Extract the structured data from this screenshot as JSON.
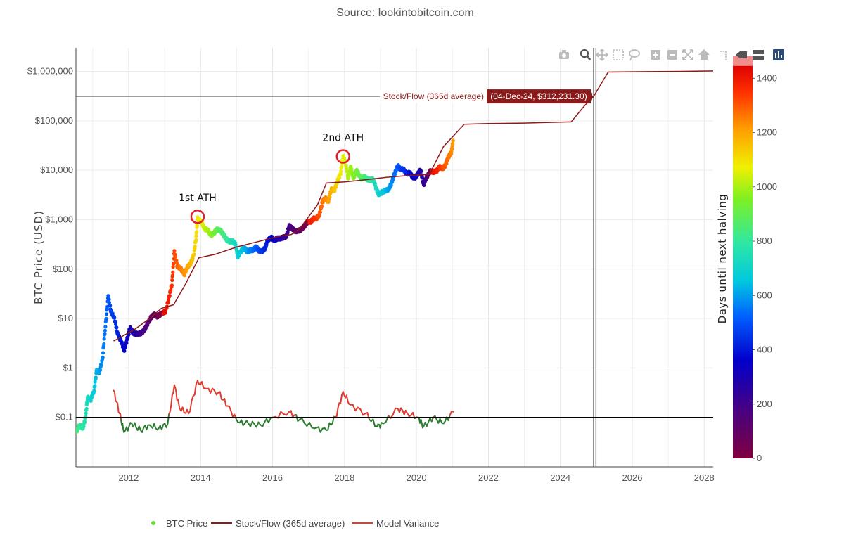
{
  "source": "Source: lookintobitcoin.com",
  "chart_data": {
    "type": "scatter",
    "xlabel": "",
    "ylabel": "BTC Price (USD)",
    "y_scale": "log",
    "xlim": [
      "2010-07-15",
      "2028-04-01"
    ],
    "ylim": [
      0.01,
      3000000
    ],
    "x_ticks": [
      "2012",
      "2014",
      "2016",
      "2018",
      "2020",
      "2022",
      "2024",
      "2026",
      "2028"
    ],
    "y_ticks": [
      {
        "v": 0.1,
        "label": "$0.1"
      },
      {
        "v": 1,
        "label": "$1"
      },
      {
        "v": 10,
        "label": "$10"
      },
      {
        "v": 100,
        "label": "$100"
      },
      {
        "v": 1000,
        "label": "$1,000"
      },
      {
        "v": 10000,
        "label": "$10,000"
      },
      {
        "v": 100000,
        "label": "$100,000"
      },
      {
        "v": 1000000,
        "label": "$1,000,000"
      }
    ],
    "colorbar": {
      "title": "Days until next halving",
      "min": 0,
      "max": 1450,
      "ticks": [
        0,
        200,
        400,
        600,
        800,
        1000,
        1200,
        1400
      ]
    },
    "series": [
      {
        "name": "BTC Price",
        "kind": "markers",
        "points": [
          [
            "2010-07-18",
            0.05,
            850
          ],
          [
            "2010-08-20",
            0.07,
            810
          ],
          [
            "2010-09-25",
            0.06,
            780
          ],
          [
            "2010-10-20",
            0.1,
            760
          ],
          [
            "2010-11-10",
            0.25,
            730
          ],
          [
            "2010-12-10",
            0.22,
            700
          ],
          [
            "2011-01-15",
            0.35,
            660
          ],
          [
            "2011-02-10",
            0.9,
            630
          ],
          [
            "2011-03-10",
            0.8,
            600
          ],
          [
            "2011-04-10",
            1.5,
            570
          ],
          [
            "2011-05-10",
            7,
            540
          ],
          [
            "2011-06-08",
            28,
            510
          ],
          [
            "2011-07-05",
            14,
            480
          ],
          [
            "2011-08-10",
            10,
            450
          ],
          [
            "2011-09-10",
            5,
            420
          ],
          [
            "2011-10-15",
            3.5,
            390
          ],
          [
            "2011-11-18",
            2.3,
            360
          ],
          [
            "2011-12-20",
            4,
            330
          ],
          [
            "2012-01-15",
            6.5,
            310
          ],
          [
            "2012-02-20",
            5,
            290
          ],
          [
            "2012-04-01",
            4.9,
            250
          ],
          [
            "2012-05-15",
            5.1,
            210
          ],
          [
            "2012-06-20",
            6.5,
            170
          ],
          [
            "2012-07-20",
            8.5,
            140
          ],
          [
            "2012-08-20",
            11,
            110
          ],
          [
            "2012-09-20",
            12,
            80
          ],
          [
            "2012-10-20",
            11,
            50
          ],
          [
            "2012-11-25",
            12.5,
            10
          ],
          [
            "2013-01-10",
            14,
            1420
          ],
          [
            "2013-02-15",
            27,
            1380
          ],
          [
            "2013-03-15",
            50,
            1350
          ],
          [
            "2013-04-09",
            220,
            1320
          ],
          [
            "2013-05-10",
            115,
            1290
          ],
          [
            "2013-06-15",
            100,
            1260
          ],
          [
            "2013-07-20",
            80,
            1230
          ],
          [
            "2013-08-20",
            110,
            1200
          ],
          [
            "2013-09-20",
            130,
            1170
          ],
          [
            "2013-10-20",
            180,
            1140
          ],
          [
            "2013-11-15",
            420,
            1110
          ],
          [
            "2013-12-01",
            1050,
            1090
          ],
          [
            "2014-01-10",
            900,
            1060
          ],
          [
            "2014-02-10",
            650,
            1030
          ],
          [
            "2014-03-15",
            620,
            1000
          ],
          [
            "2014-04-15",
            480,
            970
          ],
          [
            "2014-05-20",
            550,
            930
          ],
          [
            "2014-06-15",
            630,
            900
          ],
          [
            "2014-07-20",
            610,
            870
          ],
          [
            "2014-08-20",
            500,
            840
          ],
          [
            "2014-09-20",
            400,
            810
          ],
          [
            "2014-10-20",
            360,
            780
          ],
          [
            "2014-11-20",
            370,
            750
          ],
          [
            "2014-12-20",
            320,
            720
          ],
          [
            "2015-01-14",
            180,
            690
          ],
          [
            "2015-02-20",
            240,
            660
          ],
          [
            "2015-03-20",
            270,
            630
          ],
          [
            "2015-04-20",
            225,
            600
          ],
          [
            "2015-05-20",
            240,
            570
          ],
          [
            "2015-06-20",
            245,
            540
          ],
          [
            "2015-07-20",
            280,
            510
          ],
          [
            "2015-08-20",
            230,
            480
          ],
          [
            "2015-09-20",
            230,
            450
          ],
          [
            "2015-10-20",
            270,
            420
          ],
          [
            "2015-11-10",
            380,
            400
          ],
          [
            "2015-12-20",
            440,
            370
          ],
          [
            "2016-01-20",
            380,
            340
          ],
          [
            "2016-02-20",
            420,
            310
          ],
          [
            "2016-03-20",
            415,
            280
          ],
          [
            "2016-04-20",
            440,
            250
          ],
          [
            "2016-05-20",
            450,
            220
          ],
          [
            "2016-06-18",
            750,
            190
          ],
          [
            "2016-07-20",
            660,
            160
          ],
          [
            "2016-08-20",
            580,
            130
          ],
          [
            "2016-09-20",
            600,
            100
          ],
          [
            "2016-10-20",
            640,
            70
          ],
          [
            "2016-11-20",
            740,
            40
          ],
          [
            "2016-12-20",
            900,
            10
          ],
          [
            "2017-01-20",
            900,
            1400
          ],
          [
            "2017-02-20",
            1050,
            1370
          ],
          [
            "2017-03-20",
            1050,
            1340
          ],
          [
            "2017-04-20",
            1250,
            1310
          ],
          [
            "2017-05-25",
            2400,
            1270
          ],
          [
            "2017-06-20",
            2700,
            1240
          ],
          [
            "2017-07-20",
            2300,
            1210
          ],
          [
            "2017-08-20",
            4100,
            1180
          ],
          [
            "2017-09-20",
            3900,
            1150
          ],
          [
            "2017-10-20",
            6000,
            1120
          ],
          [
            "2017-11-20",
            8200,
            1090
          ],
          [
            "2017-12-17",
            19000,
            1060
          ],
          [
            "2018-01-10",
            14500,
            1040
          ],
          [
            "2018-02-06",
            7000,
            1010
          ],
          [
            "2018-03-05",
            11500,
            990
          ],
          [
            "2018-04-01",
            7000,
            960
          ],
          [
            "2018-05-05",
            9800,
            930
          ],
          [
            "2018-06-20",
            6700,
            880
          ],
          [
            "2018-07-20",
            7400,
            850
          ],
          [
            "2018-08-20",
            6500,
            820
          ],
          [
            "2018-09-20",
            6400,
            790
          ],
          [
            "2018-10-20",
            6500,
            760
          ],
          [
            "2018-11-25",
            3900,
            720
          ],
          [
            "2018-12-15",
            3300,
            700
          ],
          [
            "2019-01-20",
            3600,
            670
          ],
          [
            "2019-02-20",
            3900,
            640
          ],
          [
            "2019-03-20",
            4000,
            610
          ],
          [
            "2019-04-20",
            5300,
            580
          ],
          [
            "2019-05-20",
            8000,
            550
          ],
          [
            "2019-06-26",
            12500,
            510
          ],
          [
            "2019-07-20",
            10500,
            480
          ],
          [
            "2019-08-20",
            10500,
            450
          ],
          [
            "2019-09-25",
            8500,
            420
          ],
          [
            "2019-10-25",
            9000,
            390
          ],
          [
            "2019-11-25",
            7200,
            360
          ],
          [
            "2019-12-20",
            7200,
            330
          ],
          [
            "2020-01-20",
            8600,
            300
          ],
          [
            "2020-02-13",
            10300,
            270
          ],
          [
            "2020-03-13",
            5000,
            240
          ],
          [
            "2020-04-05",
            6800,
            220
          ],
          [
            "2020-05-20",
            9500,
            5
          ],
          [
            "2020-06-20",
            9300,
            1420
          ],
          [
            "2020-07-20",
            9500,
            1390
          ],
          [
            "2020-08-20",
            11700,
            1360
          ],
          [
            "2020-09-20",
            10900,
            1330
          ],
          [
            "2020-10-20",
            12500,
            1300
          ],
          [
            "2020-11-20",
            18500,
            1270
          ],
          [
            "2020-12-20",
            23000,
            1240
          ],
          [
            "2021-01-08",
            40000,
            1220
          ]
        ]
      },
      {
        "name": "Stock/Flow (365d average)",
        "kind": "line",
        "color": "#8b1a1a",
        "points": [
          [
            "2011-08-01",
            3.5
          ],
          [
            "2012-03-01",
            6
          ],
          [
            "2012-08-01",
            10
          ],
          [
            "2012-11-28",
            16
          ],
          [
            "2013-04-01",
            19
          ],
          [
            "2013-08-01",
            50
          ],
          [
            "2013-12-15",
            170
          ],
          [
            "2014-06-01",
            200
          ],
          [
            "2015-01-01",
            280
          ],
          [
            "2015-09-01",
            370
          ],
          [
            "2016-03-01",
            460
          ],
          [
            "2016-07-09",
            500
          ],
          [
            "2016-10-01",
            650
          ],
          [
            "2017-04-01",
            2000
          ],
          [
            "2017-07-01",
            5500
          ],
          [
            "2018-01-01",
            5800
          ],
          [
            "2018-09-01",
            6500
          ],
          [
            "2019-03-01",
            7200
          ],
          [
            "2019-10-01",
            7800
          ],
          [
            "2020-05-11",
            8200
          ],
          [
            "2020-10-01",
            30000
          ],
          [
            "2021-05-01",
            85000
          ],
          [
            "2022-01-01",
            88000
          ],
          [
            "2023-01-01",
            90000
          ],
          [
            "2024-04-20",
            95000
          ],
          [
            "2024-09-01",
            200000
          ],
          [
            "2024-12-04",
            312231.3
          ],
          [
            "2025-05-01",
            970000
          ],
          [
            "2026-06-01",
            990000
          ],
          [
            "2027-06-01",
            1000000
          ],
          [
            "2028-04-01",
            1020000
          ]
        ]
      },
      {
        "name": "Model Variance",
        "kind": "line",
        "color_above": "#e03c31",
        "color_below": "#2e7d32",
        "baseline": 0.1,
        "points": [
          [
            "2011-08-01",
            0.35
          ],
          [
            "2011-10-01",
            0.12
          ],
          [
            "2011-11-15",
            0.05
          ],
          [
            "2012-02-01",
            0.075
          ],
          [
            "2012-05-01",
            0.055
          ],
          [
            "2012-08-01",
            0.07
          ],
          [
            "2012-11-01",
            0.06
          ],
          [
            "2013-02-01",
            0.075
          ],
          [
            "2013-04-09",
            0.45
          ],
          [
            "2013-06-01",
            0.15
          ],
          [
            "2013-09-01",
            0.12
          ],
          [
            "2013-12-01",
            0.55
          ],
          [
            "2014-03-01",
            0.38
          ],
          [
            "2014-07-01",
            0.32
          ],
          [
            "2014-10-01",
            0.17
          ],
          [
            "2015-01-14",
            0.08
          ],
          [
            "2015-05-01",
            0.075
          ],
          [
            "2015-09-01",
            0.07
          ],
          [
            "2016-01-01",
            0.1
          ],
          [
            "2016-06-18",
            0.13
          ],
          [
            "2016-10-01",
            0.09
          ],
          [
            "2017-03-01",
            0.06
          ],
          [
            "2017-07-01",
            0.055
          ],
          [
            "2017-10-01",
            0.1
          ],
          [
            "2017-12-17",
            0.33
          ],
          [
            "2018-03-01",
            0.18
          ],
          [
            "2018-08-01",
            0.12
          ],
          [
            "2018-11-25",
            0.065
          ],
          [
            "2019-02-01",
            0.075
          ],
          [
            "2019-06-26",
            0.15
          ],
          [
            "2019-10-01",
            0.12
          ],
          [
            "2020-01-20",
            0.1
          ],
          [
            "2020-03-13",
            0.065
          ],
          [
            "2020-06-20",
            0.1
          ],
          [
            "2020-10-01",
            0.075
          ],
          [
            "2021-01-08",
            0.13
          ]
        ]
      }
    ],
    "annotations": [
      {
        "text": "1st ATH",
        "x": "2013-12-01",
        "y": 1150
      },
      {
        "text": "2nd ATH",
        "x": "2017-12-17",
        "y": 19000
      }
    ],
    "hover": {
      "x": "2024-12-04",
      "y_ref": 312231.3,
      "series_label": "Stock/Flow (365d average)",
      "value_label": "(04-Dec-24, $312,231.30)"
    },
    "hline": {
      "y": 0.1,
      "color": "#000000"
    },
    "legend": {
      "placement": "bottom"
    }
  },
  "toolbar": [
    {
      "name": "camera-icon",
      "title": "Download plot as png"
    },
    {
      "name": "zoom-icon",
      "title": "Zoom"
    },
    {
      "name": "pan-icon",
      "title": "Pan"
    },
    {
      "name": "box-select-icon",
      "title": "Box Select"
    },
    {
      "name": "lasso-icon",
      "title": "Lasso Select"
    },
    {
      "name": "zoom-in-icon",
      "title": "Zoom in"
    },
    {
      "name": "zoom-out-icon",
      "title": "Zoom out"
    },
    {
      "name": "autoscale-icon",
      "title": "Autoscale"
    },
    {
      "name": "home-icon",
      "title": "Reset axes"
    },
    {
      "name": "spike-icon",
      "title": "Toggle Spike Lines"
    },
    {
      "name": "hover-closest-icon",
      "title": "Show closest data on hover"
    },
    {
      "name": "hover-compare-icon",
      "title": "Compare data on hover"
    },
    {
      "name": "plotly-logo-icon",
      "title": "Produced with Plotly"
    }
  ]
}
